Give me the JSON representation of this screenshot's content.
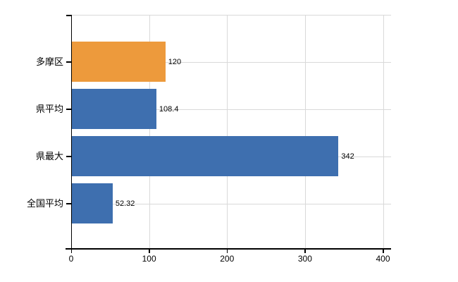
{
  "chart_data": {
    "type": "bar",
    "orientation": "horizontal",
    "title": "",
    "xlabel": "",
    "ylabel": "",
    "categories": [
      "多摩区",
      "県平均",
      "県最大",
      "全国平均"
    ],
    "values": [
      120,
      108.4,
      342,
      52.32
    ],
    "value_labels": [
      "120",
      "108.4",
      "342",
      "52.32"
    ],
    "bar_colors": [
      "#ED9A3C",
      "#3E6FAF",
      "#3E6FAF",
      "#3E6FAF"
    ],
    "x_ticks": [
      0,
      100,
      200,
      300,
      400
    ],
    "x_tick_labels": [
      "0",
      "100",
      "200",
      "300",
      "400"
    ],
    "xlim": [
      0,
      410
    ],
    "grid": true,
    "legend": false,
    "colors": {
      "highlight_bar": "#ED9A3C",
      "default_bar": "#3E6FAF",
      "gridline": "#D9D9D9",
      "axis": "#000000",
      "text": "#000000",
      "background": "#FFFFFF"
    }
  }
}
